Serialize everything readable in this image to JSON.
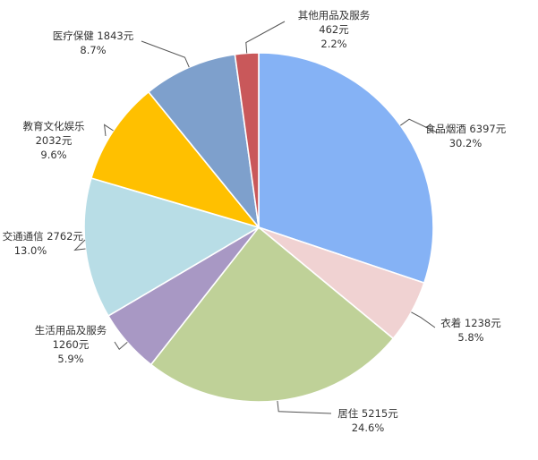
{
  "chart_data": {
    "type": "pie",
    "title": "",
    "unit": "元",
    "start_angle_deg": 0,
    "direction": "clockwise",
    "legend": "none",
    "slices": [
      {
        "name": "食品烟酒",
        "value": 6397,
        "percent": "30.2%",
        "color": "#85B2F5",
        "label_line1": "食品烟酒 6397元",
        "label_line2": "30.2%"
      },
      {
        "name": "衣着",
        "value": 1238,
        "percent": "5.8%",
        "color": "#F0D2D2",
        "label_line1": "衣着 1238元",
        "label_line2": "5.8%"
      },
      {
        "name": "居住",
        "value": 5215,
        "percent": "24.6%",
        "color": "#BFD198",
        "label_line1": "居住 5215元",
        "label_line2": "24.6%"
      },
      {
        "name": "生活用品及服务",
        "value": 1260,
        "percent": "5.9%",
        "color": "#A898C4",
        "label_line1": "生活用品及服务",
        "label_line2": "1260元",
        "label_line3": "5.9%"
      },
      {
        "name": "交通通信",
        "value": 2762,
        "percent": "13.0%",
        "color": "#B8DDE6",
        "label_line1": "交通通信 2762元",
        "label_line2": "13.0%"
      },
      {
        "name": "教育文化娱乐",
        "value": 2032,
        "percent": "9.6%",
        "color": "#FFC000",
        "label_line1": "教育文化娱乐",
        "label_line2": "2032元",
        "label_line3": "9.6%"
      },
      {
        "name": "医疗保健",
        "value": 1843,
        "percent": "8.7%",
        "color": "#7EA0CC",
        "label_line1": "医疗保健 1843元",
        "label_line2": "8.7%"
      },
      {
        "name": "其他用品及服务",
        "value": 462,
        "percent": "2.2%",
        "color": "#C9585A",
        "label_line1": "其他用品及服务",
        "label_line2": "462元",
        "label_line3": "2.2%"
      }
    ]
  }
}
